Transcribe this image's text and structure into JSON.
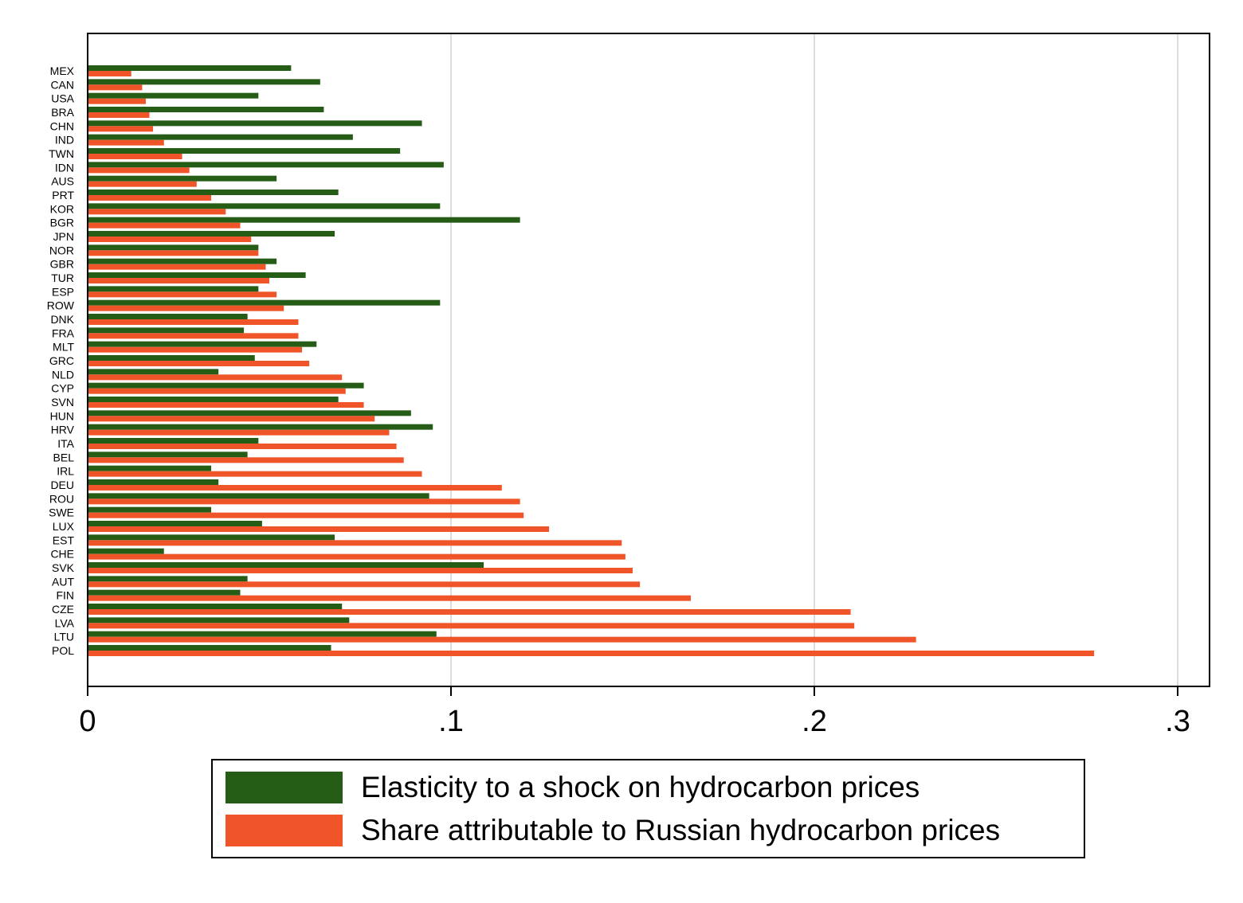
{
  "chart_data": {
    "type": "bar",
    "orientation": "horizontal",
    "categories": [
      "MEX",
      "CAN",
      "USA",
      "BRA",
      "CHN",
      "IND",
      "TWN",
      "IDN",
      "AUS",
      "PRT",
      "KOR",
      "BGR",
      "JPN",
      "NOR",
      "GBR",
      "TUR",
      "ESP",
      "ROW",
      "DNK",
      "FRA",
      "MLT",
      "GRC",
      "NLD",
      "CYP",
      "SVN",
      "HUN",
      "HRV",
      "ITA",
      "BEL",
      "IRL",
      "DEU",
      "ROU",
      "SWE",
      "LUX",
      "EST",
      "CHE",
      "SVK",
      "AUT",
      "FIN",
      "CZE",
      "LVA",
      "LTU",
      "POL"
    ],
    "series": [
      {
        "name": "Elasticity to a shock on hydrocarbon prices",
        "color": "#255d17",
        "values": [
          0.056,
          0.064,
          0.047,
          0.065,
          0.092,
          0.073,
          0.086,
          0.098,
          0.052,
          0.069,
          0.097,
          0.119,
          0.068,
          0.047,
          0.052,
          0.06,
          0.047,
          0.097,
          0.044,
          0.043,
          0.063,
          0.046,
          0.036,
          0.076,
          0.069,
          0.089,
          0.095,
          0.047,
          0.044,
          0.034,
          0.036,
          0.094,
          0.034,
          0.048,
          0.068,
          0.021,
          0.109,
          0.044,
          0.042,
          0.07,
          0.072,
          0.096,
          0.067
        ]
      },
      {
        "name": "Share attributable to Russian hydrocarbon prices",
        "color": "#f0552a",
        "values": [
          0.012,
          0.015,
          0.016,
          0.017,
          0.018,
          0.021,
          0.026,
          0.028,
          0.03,
          0.034,
          0.038,
          0.042,
          0.045,
          0.047,
          0.049,
          0.05,
          0.052,
          0.054,
          0.058,
          0.058,
          0.059,
          0.061,
          0.07,
          0.071,
          0.076,
          0.079,
          0.083,
          0.085,
          0.087,
          0.092,
          0.114,
          0.119,
          0.12,
          0.127,
          0.147,
          0.148,
          0.15,
          0.152,
          0.166,
          0.21,
          0.211,
          0.228,
          0.277
        ]
      }
    ],
    "xlim": [
      0,
      0.309
    ],
    "xticks": [
      0,
      0.1,
      0.2,
      0.3
    ],
    "xtick_labels": [
      "0",
      ".1",
      ".2",
      ".3"
    ],
    "grid": "vertical",
    "legend_position": "bottom"
  }
}
